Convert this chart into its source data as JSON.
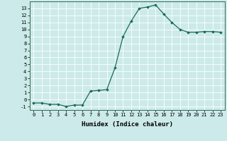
{
  "x": [
    0,
    1,
    2,
    3,
    4,
    5,
    6,
    7,
    8,
    9,
    10,
    11,
    12,
    13,
    14,
    15,
    16,
    17,
    18,
    19,
    20,
    21,
    22,
    23
  ],
  "y": [
    -0.5,
    -0.5,
    -0.7,
    -0.7,
    -1.0,
    -0.8,
    -0.8,
    1.2,
    1.3,
    1.4,
    4.5,
    9.0,
    11.2,
    13.0,
    13.2,
    13.5,
    12.2,
    11.0,
    10.0,
    9.6,
    9.6,
    9.7,
    9.7,
    9.6
  ],
  "line_color": "#1a6b5a",
  "marker": "D",
  "markersize": 1.8,
  "linewidth": 0.9,
  "xlabel": "Humidex (Indice chaleur)",
  "xlim": [
    -0.5,
    23.5
  ],
  "ylim": [
    -1.5,
    14.0
  ],
  "yticks": [
    -1,
    0,
    1,
    2,
    3,
    4,
    5,
    6,
    7,
    8,
    9,
    10,
    11,
    12,
    13
  ],
  "xticks": [
    0,
    1,
    2,
    3,
    4,
    5,
    6,
    7,
    8,
    9,
    10,
    11,
    12,
    13,
    14,
    15,
    16,
    17,
    18,
    19,
    20,
    21,
    22,
    23
  ],
  "bg_color": "#cceaea",
  "grid_color": "#ffffff",
  "tick_fontsize": 5,
  "xlabel_fontsize": 6.5
}
